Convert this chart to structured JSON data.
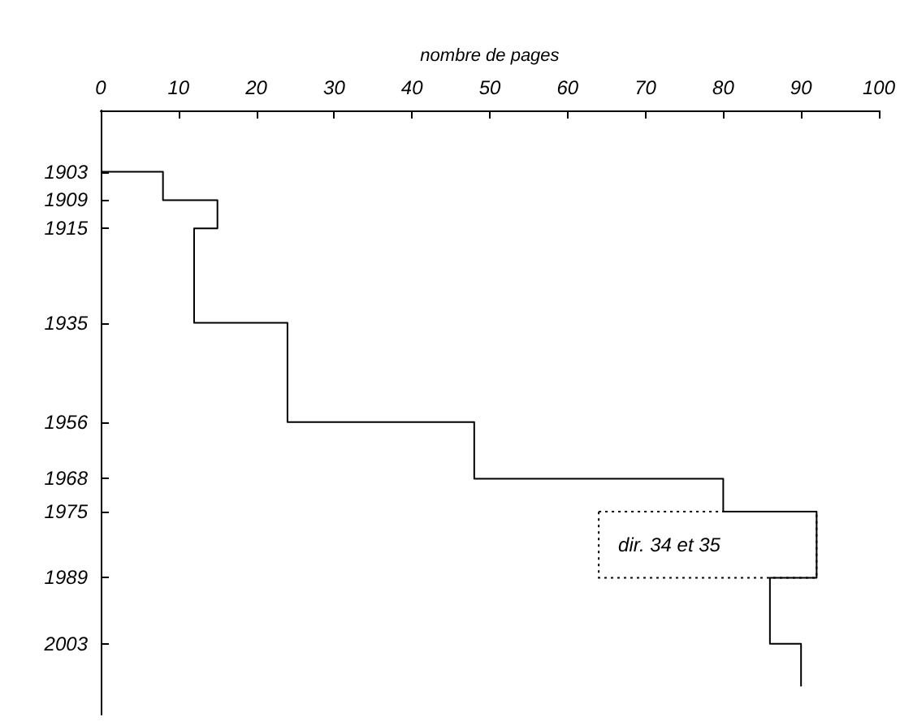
{
  "chart_data": {
    "type": "step",
    "orientation": "horizontal",
    "xlabel": "nombre de pages",
    "x": [
      1903,
      1903,
      1909,
      1915,
      1935,
      1956,
      1968,
      1975,
      1989,
      2003,
      2012
    ],
    "series": [
      {
        "color": "#000000",
        "values": [
          0,
          8,
          15,
          12,
          24,
          48,
          80,
          92,
          86,
          90,
          90
        ]
      }
    ],
    "xlim": [
      0,
      100
    ],
    "xticks": [
      0,
      10,
      20,
      30,
      40,
      50,
      60,
      70,
      80,
      90,
      100
    ],
    "ylim": [
      2018,
      1890
    ],
    "yticks": [
      1903,
      1909,
      1915,
      1935,
      1956,
      1968,
      1975,
      1989,
      2003
    ],
    "annotations": [
      "dir. 34 et 35"
    ],
    "grid": false,
    "marker": "none",
    "line_style": "solid"
  }
}
